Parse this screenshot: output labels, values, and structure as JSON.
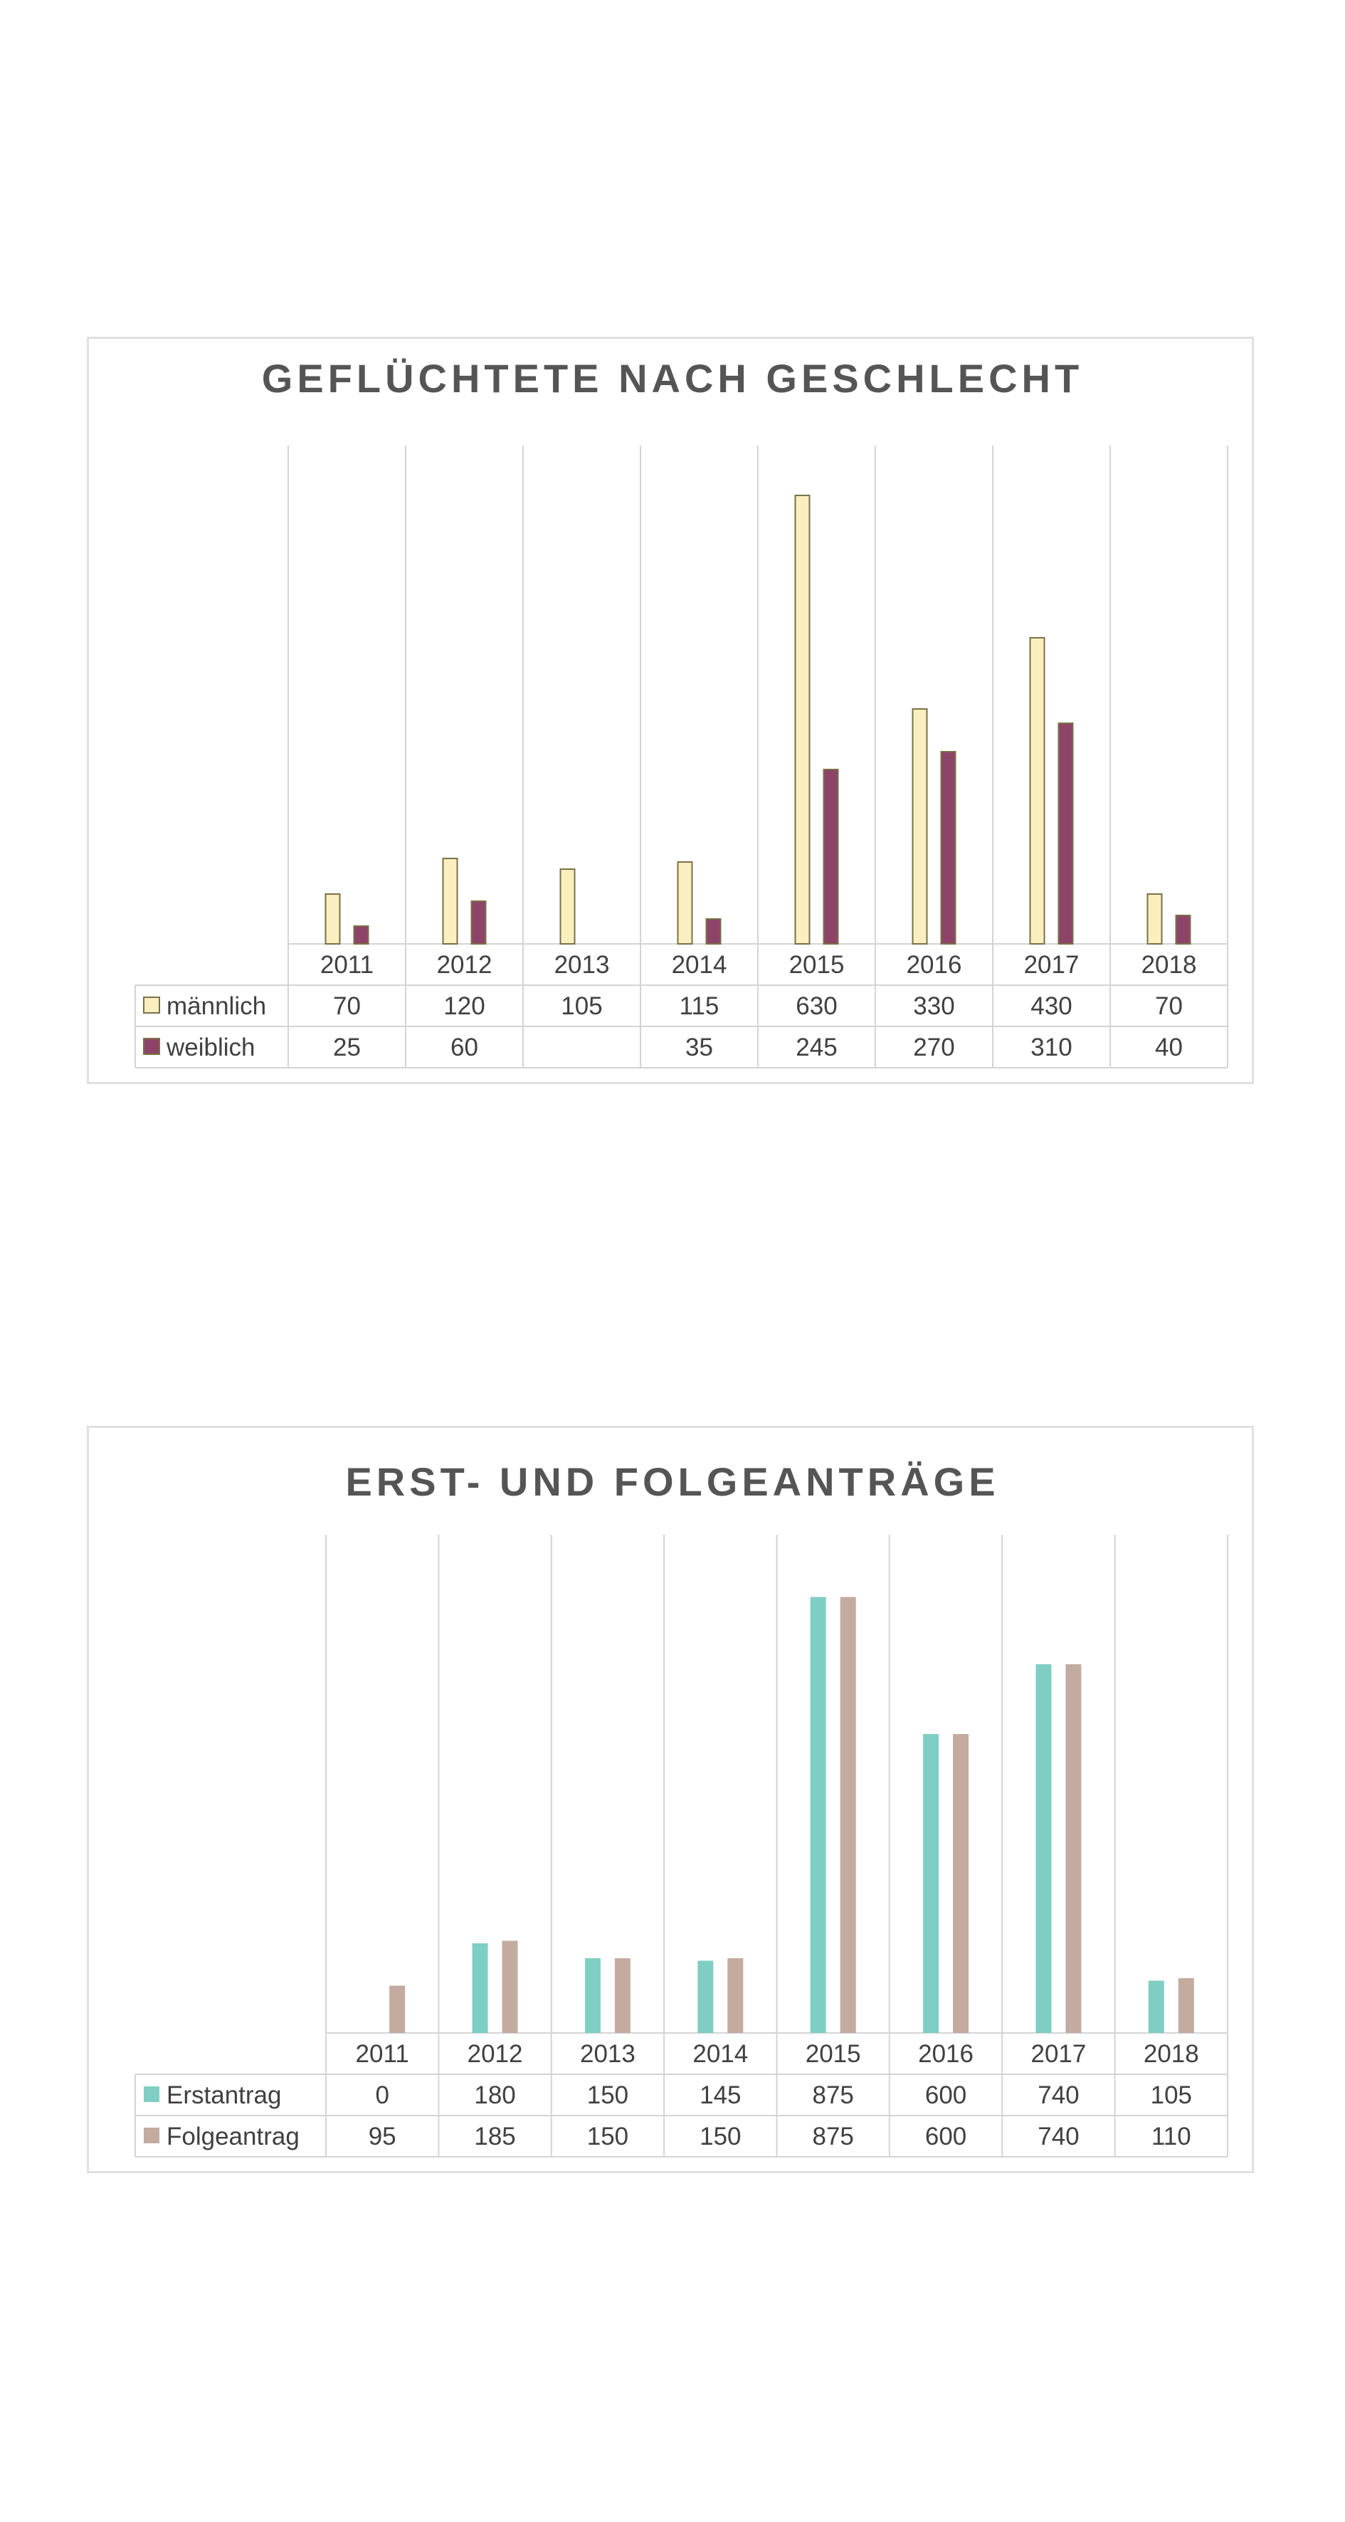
{
  "chart_data": [
    {
      "type": "bar",
      "title": "GEFLÜCHTETE NACH GESCHLECHT",
      "categories": [
        "2011",
        "2012",
        "2013",
        "2014",
        "2015",
        "2016",
        "2017",
        "2018"
      ],
      "series": [
        {
          "name": "männlich",
          "values": [
            70,
            120,
            105,
            115,
            630,
            330,
            430,
            70
          ],
          "labels": [
            "70",
            "120",
            "105",
            "115",
            "630",
            "330",
            "430",
            "70"
          ]
        },
        {
          "name": "weiblich",
          "values": [
            25,
            60,
            null,
            35,
            245,
            270,
            310,
            40
          ],
          "labels": [
            "25",
            "60",
            "",
            "35",
            "245",
            "270",
            "310",
            "40"
          ]
        }
      ],
      "ylim": [
        0,
        700
      ],
      "grid": "vertical category separators",
      "legend": "data table below chart",
      "colors": {
        "männlich": "#FBEFC0",
        "weiblich": "#8E4468",
        "border": "#7a7048"
      }
    },
    {
      "type": "bar",
      "title": "ERST- UND FOLGEANTRÄGE",
      "categories": [
        "2011",
        "2012",
        "2013",
        "2014",
        "2015",
        "2016",
        "2017",
        "2018"
      ],
      "series": [
        {
          "name": "Erstantrag",
          "values": [
            0,
            180,
            150,
            145,
            875,
            600,
            740,
            105
          ],
          "labels": [
            "0",
            "180",
            "150",
            "145",
            "875",
            "600",
            "740",
            "105"
          ]
        },
        {
          "name": "Folgeantrag",
          "values": [
            95,
            185,
            150,
            150,
            875,
            600,
            740,
            110
          ],
          "labels": [
            "95",
            "185",
            "150",
            "150",
            "875",
            "600",
            "740",
            "110"
          ]
        }
      ],
      "ylim": [
        0,
        1000
      ],
      "grid": "vertical category separators",
      "legend": "data table below chart",
      "colors": {
        "Erstantrag": "#7FCEC4",
        "Folgeantrag": "#C4ABA0"
      }
    }
  ]
}
